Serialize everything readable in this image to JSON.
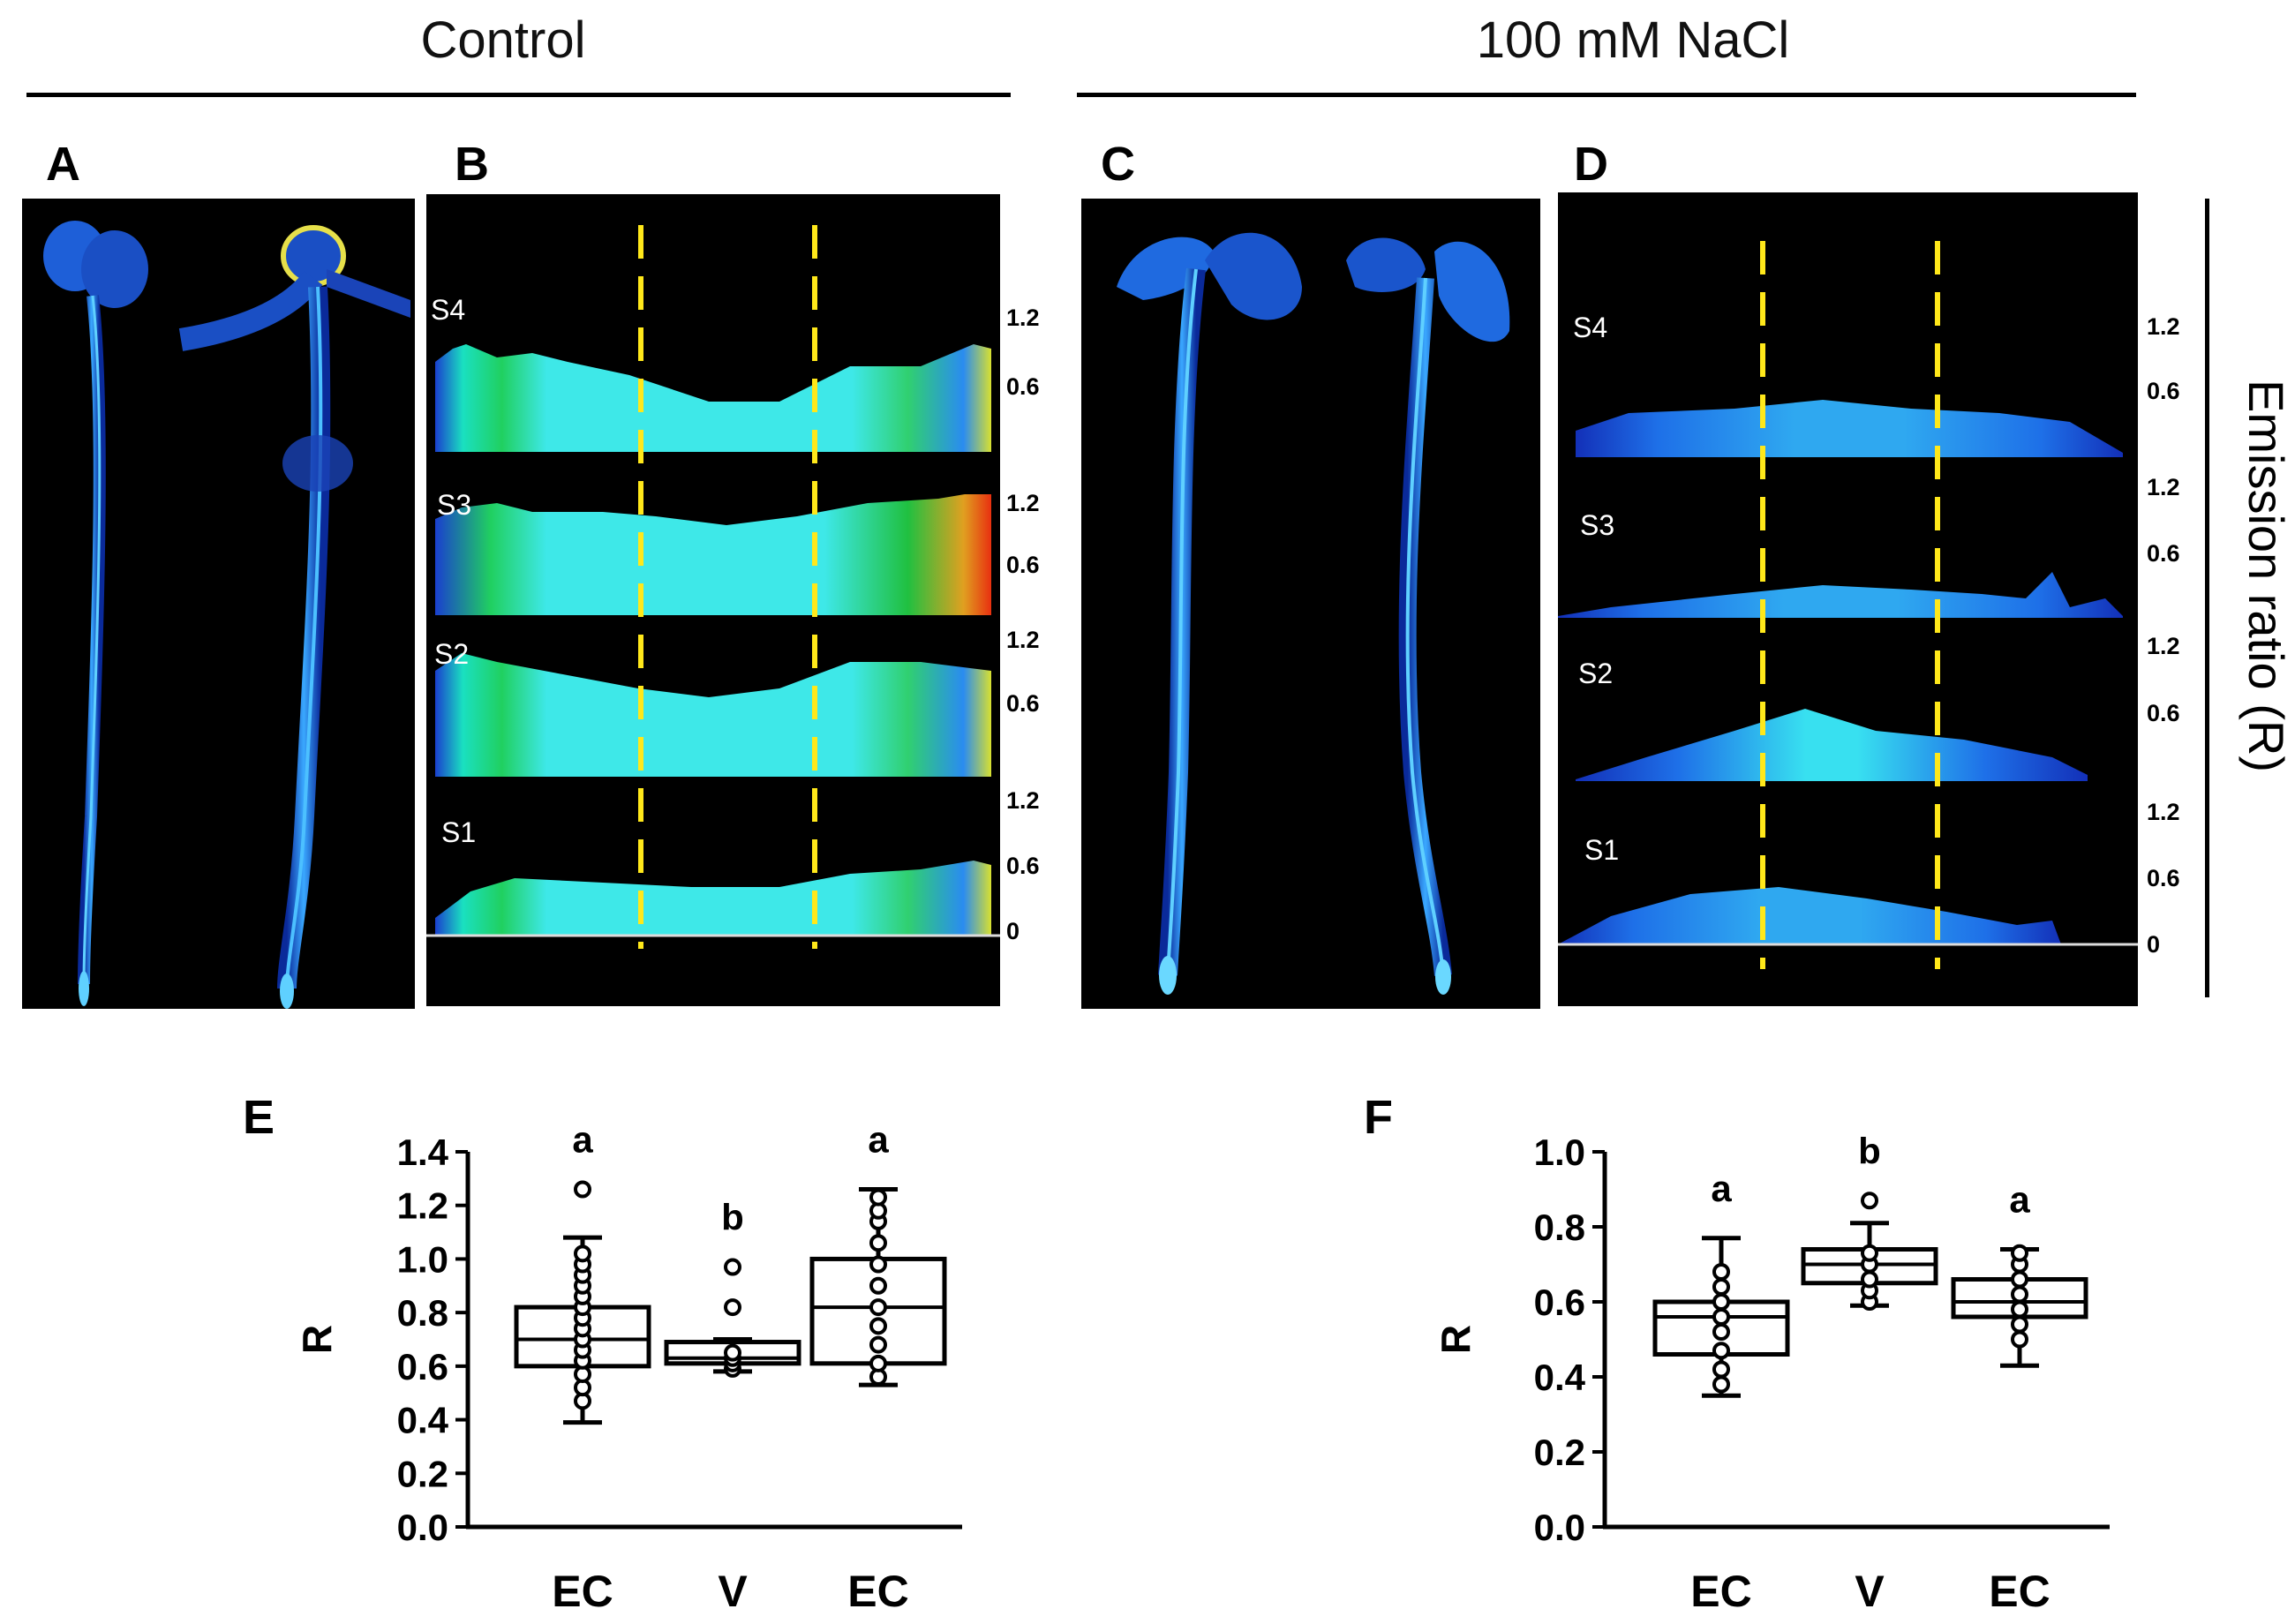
{
  "conditions": {
    "control": "Control",
    "nacl": "100 mM NaCl"
  },
  "panel_labels": {
    "A": "A",
    "B": "B",
    "C": "C",
    "D": "D",
    "E": "E",
    "F": "F"
  },
  "emission_label": "Emission ratio (R)",
  "profile_panels": {
    "B": {
      "segments": [
        "S4",
        "S3",
        "S2",
        "S1"
      ],
      "tick_labels": [
        [
          "1.2",
          "0.6"
        ],
        [
          "1.2",
          "0.6"
        ],
        [
          "1.2",
          "0.6"
        ],
        [
          "1.2",
          "0.6",
          "0"
        ]
      ]
    },
    "D": {
      "segments": [
        "S4",
        "S3",
        "S2",
        "S1"
      ],
      "tick_labels": [
        [
          "1.2",
          "0.6"
        ],
        [
          "1.2",
          "0.6"
        ],
        [
          "1.2",
          "0.6"
        ],
        [
          "1.2",
          "0.6",
          "0"
        ]
      ]
    }
  },
  "chart_data": [
    {
      "type": "box",
      "panel": "E",
      "ylabel": "R",
      "ylim": [
        0,
        1.4
      ],
      "yticks": [
        "0.0",
        "0.2",
        "0.4",
        "0.6",
        "0.8",
        "1.0",
        "1.2",
        "1.4"
      ],
      "categories": [
        "EC",
        "V",
        "EC"
      ],
      "letters": [
        "a",
        "b",
        "a"
      ],
      "boxes": [
        {
          "whisker_low": 0.39,
          "q1": 0.6,
          "median": 0.7,
          "q3": 0.82,
          "whisker_high": 1.08,
          "points": [
            0.47,
            0.52,
            0.57,
            0.62,
            0.66,
            0.7,
            0.74,
            0.78,
            0.82,
            0.86,
            0.9,
            0.94,
            0.98,
            1.02,
            1.26
          ]
        },
        {
          "whisker_low": 0.58,
          "q1": 0.61,
          "median": 0.63,
          "q3": 0.69,
          "whisker_high": 0.7,
          "points": [
            0.59,
            0.61,
            0.63,
            0.65,
            0.82,
            0.97
          ]
        },
        {
          "whisker_low": 0.53,
          "q1": 0.61,
          "median": 0.82,
          "q3": 1.0,
          "whisker_high": 1.26,
          "points": [
            0.56,
            0.61,
            0.68,
            0.75,
            0.82,
            0.9,
            0.98,
            1.06,
            1.14,
            1.18,
            1.23
          ]
        }
      ]
    },
    {
      "type": "box",
      "panel": "F",
      "ylabel": "R",
      "ylim": [
        0,
        1.0
      ],
      "yticks": [
        "0.0",
        "0.2",
        "0.4",
        "0.6",
        "0.8",
        "1.0"
      ],
      "categories": [
        "EC",
        "V",
        "EC"
      ],
      "letters": [
        "a",
        "b",
        "a"
      ],
      "boxes": [
        {
          "whisker_low": 0.35,
          "q1": 0.46,
          "median": 0.56,
          "q3": 0.6,
          "whisker_high": 0.77,
          "points": [
            0.38,
            0.42,
            0.47,
            0.52,
            0.56,
            0.6,
            0.64,
            0.68
          ]
        },
        {
          "whisker_low": 0.59,
          "q1": 0.65,
          "median": 0.7,
          "q3": 0.74,
          "whisker_high": 0.81,
          "points": [
            0.6,
            0.63,
            0.66,
            0.7,
            0.73,
            0.87
          ]
        },
        {
          "whisker_low": 0.43,
          "q1": 0.56,
          "median": 0.6,
          "q3": 0.66,
          "whisker_high": 0.74,
          "points": [
            0.5,
            0.54,
            0.58,
            0.62,
            0.66,
            0.7,
            0.73
          ]
        }
      ]
    }
  ]
}
